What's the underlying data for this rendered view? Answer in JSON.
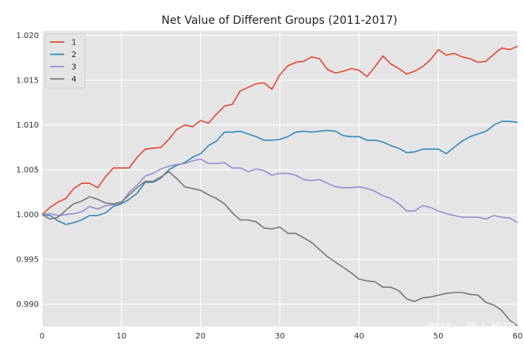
{
  "chart_data": {
    "type": "line",
    "title": "Net Value of Different Groups (2011-2017)",
    "xlabel": "",
    "ylabel": "",
    "xlim": [
      0,
      60
    ],
    "ylim": [
      0.9875,
      1.0205
    ],
    "grid": true,
    "legend_position": "top-left",
    "x_ticks": [
      0,
      10,
      20,
      30,
      40,
      50,
      60
    ],
    "y_ticks": [
      0.99,
      0.995,
      1.0,
      1.005,
      1.01,
      1.015,
      1.02
    ],
    "x_tick_labels": [
      "0",
      "10",
      "20",
      "30",
      "40",
      "50",
      "60"
    ],
    "y_tick_labels": [
      "0.990",
      "0.995",
      "1.000",
      "1.005",
      "1.010",
      "1.015",
      "1.020"
    ],
    "colors": {
      "1": "#e24a33",
      "2": "#348abd",
      "3": "#988ed5",
      "4": "#777777"
    },
    "series": [
      {
        "name": "1",
        "values": [
          1.0,
          1.0008,
          1.0014,
          1.0018,
          1.0029,
          1.0035,
          1.0035,
          1.003,
          1.0042,
          1.0052,
          1.0052,
          1.0052,
          1.0064,
          1.0073,
          1.0074,
          1.0075,
          1.0084,
          1.0095,
          1.01,
          1.0098,
          1.0105,
          1.0102,
          1.0112,
          1.0121,
          1.0123,
          1.0138,
          1.0142,
          1.0146,
          1.0147,
          1.014,
          1.0156,
          1.0166,
          1.017,
          1.0171,
          1.0176,
          1.0174,
          1.0162,
          1.0158,
          1.016,
          1.0163,
          1.0161,
          1.0154,
          1.0165,
          1.0177,
          1.0168,
          1.0163,
          1.0157,
          1.016,
          1.0165,
          1.0173,
          1.0184,
          1.0178,
          1.018,
          1.0176,
          1.0174,
          1.017,
          1.0171,
          1.0179,
          1.0186,
          1.0184,
          1.0188
        ]
      },
      {
        "name": "2",
        "values": [
          1.0,
          0.9999,
          0.9993,
          0.9989,
          0.9991,
          0.9994,
          0.9999,
          0.9999,
          1.0002,
          1.0009,
          1.0012,
          1.0017,
          1.0024,
          1.0036,
          1.0036,
          1.0041,
          1.005,
          1.0055,
          1.0058,
          1.0064,
          1.0068,
          1.0077,
          1.0082,
          1.0092,
          1.0092,
          1.0093,
          1.009,
          1.0087,
          1.0083,
          1.0083,
          1.0084,
          1.0087,
          1.0092,
          1.0093,
          1.0092,
          1.0093,
          1.0094,
          1.0093,
          1.0088,
          1.0087,
          1.0087,
          1.0083,
          1.0083,
          1.0081,
          1.0077,
          1.0074,
          1.0069,
          1.007,
          1.0073,
          1.0073,
          1.0073,
          1.0068,
          1.0075,
          1.0082,
          1.0087,
          1.009,
          1.0093,
          1.01,
          1.0104,
          1.0104,
          1.0103
        ]
      },
      {
        "name": "3",
        "values": [
          1.0,
          1.0001,
          0.9999,
          1.0,
          1.0001,
          1.0003,
          1.0009,
          1.0006,
          1.001,
          1.0011,
          1.0013,
          1.0025,
          1.0033,
          1.0043,
          1.0046,
          1.0051,
          1.0054,
          1.0056,
          1.0057,
          1.006,
          1.0062,
          1.0057,
          1.0057,
          1.0058,
          1.0052,
          1.0052,
          1.0048,
          1.0051,
          1.0049,
          1.0044,
          1.0046,
          1.0046,
          1.0044,
          1.0039,
          1.0038,
          1.0039,
          1.0035,
          1.0031,
          1.003,
          1.003,
          1.0031,
          1.0029,
          1.0026,
          1.0021,
          1.0018,
          1.0012,
          1.0004,
          1.0004,
          1.001,
          1.0008,
          1.0004,
          1.0001,
          0.9999,
          0.9997,
          0.9997,
          0.9997,
          0.9995,
          0.9999,
          0.9997,
          0.9996,
          0.9991
        ]
      },
      {
        "name": "4",
        "values": [
          1.0,
          0.9995,
          0.9997,
          1.0005,
          1.0012,
          1.0015,
          1.002,
          1.0017,
          1.0013,
          1.0012,
          1.0014,
          1.0022,
          1.003,
          1.0037,
          1.0037,
          1.0042,
          1.0048,
          1.004,
          1.0031,
          1.0029,
          1.0027,
          1.0022,
          1.0018,
          1.0012,
          1.0002,
          0.9994,
          0.9994,
          0.9992,
          0.9985,
          0.9984,
          0.9986,
          0.9979,
          0.9979,
          0.9974,
          0.9969,
          0.9961,
          0.9953,
          0.9947,
          0.9941,
          0.9935,
          0.9928,
          0.9926,
          0.9925,
          0.9919,
          0.9919,
          0.9915,
          0.9906,
          0.9903,
          0.9907,
          0.9908,
          0.991,
          0.9912,
          0.9913,
          0.9913,
          0.9911,
          0.991,
          0.9902,
          0.9899,
          0.9893,
          0.9882,
          0.9876
        ]
      }
    ]
  },
  "watermark": "雪球：萝卜投研"
}
